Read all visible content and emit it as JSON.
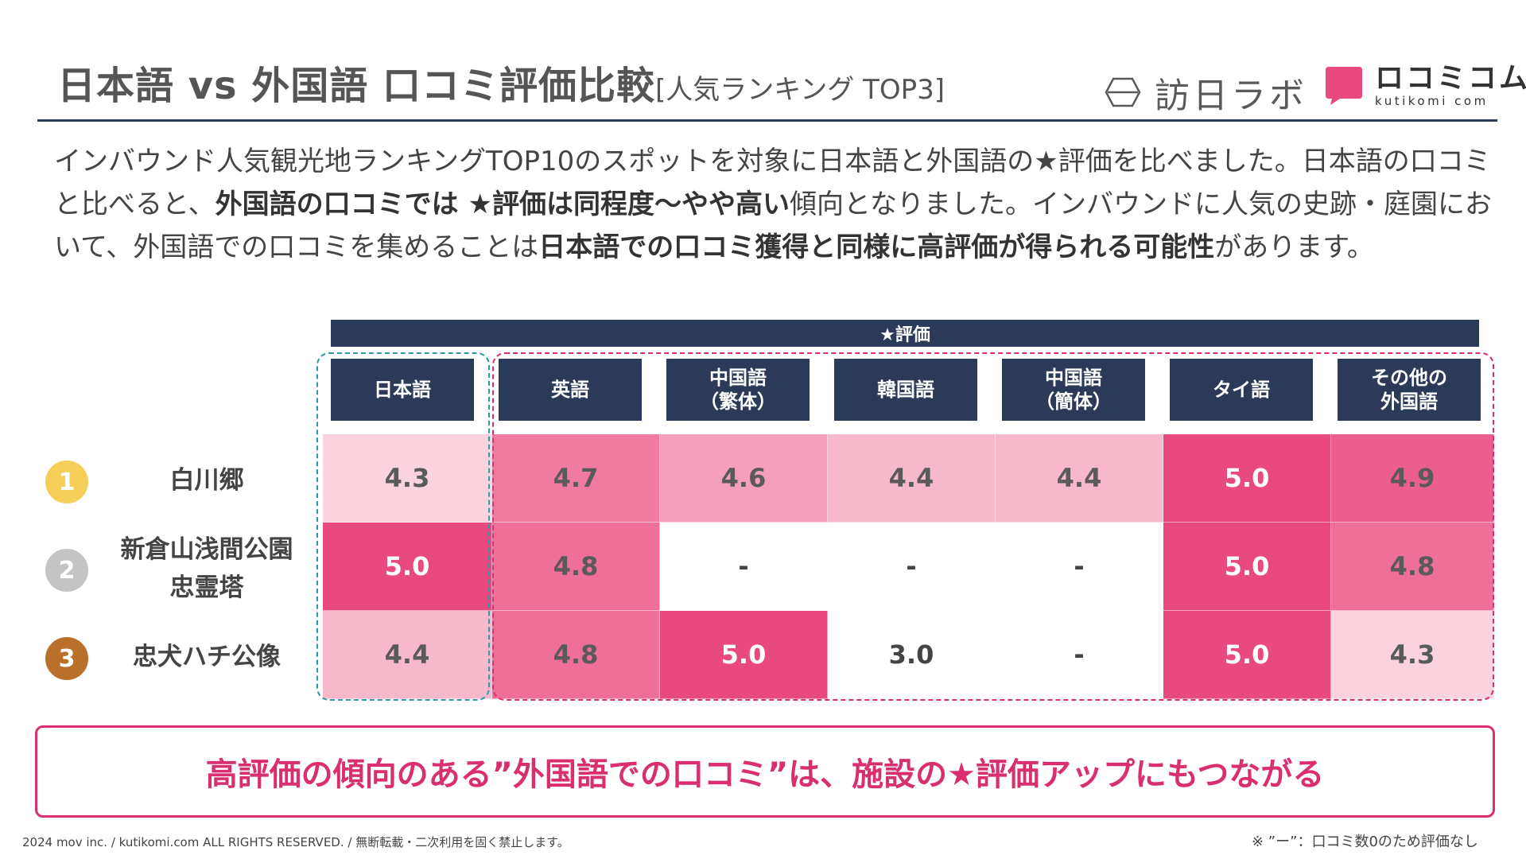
{
  "header": {
    "title": "日本語 vs 外国語 口コミ評価比較",
    "subtitle": "[人気ランキング TOP3]",
    "logo_houjin": "訪日ラボ",
    "logo_kutikomi": "ロコミコム",
    "logo_kutikomi_small": "kutikomi com"
  },
  "body": {
    "p1": "インバウンド人気観光地ランキングTOP10のスポットを対象に日本語と外国語の★評価を比べました。日本語の口コミと比べると、",
    "b1": "外国語の口コミでは ★評価は同程度〜やや高い",
    "p2": "傾向となりました。インバウンドに人気の史跡・庭園において、外国語での口コミを集めることは",
    "b2": "日本語での口コミ獲得と同様に高評価が得られる可能性",
    "p3": "があります。"
  },
  "table": {
    "group_header": "★評価",
    "columns": [
      "日本語",
      "英語",
      "中国語\n（繁体）",
      "韓国語",
      "中国語\n（簡体）",
      "タイ語",
      "その他の\n外国語"
    ],
    "rows": [
      {
        "rank": "1",
        "name": "白川郷",
        "values": [
          "4.3",
          "4.7",
          "4.6",
          "4.4",
          "4.4",
          "5.0",
          "4.9"
        ]
      },
      {
        "rank": "2",
        "name": "新倉山浅間公園\n忠霊塔",
        "values": [
          "5.0",
          "4.8",
          "-",
          "-",
          "-",
          "5.0",
          "4.8"
        ]
      },
      {
        "rank": "3",
        "name": "忠犬ハチ公像",
        "values": [
          "4.4",
          "4.8",
          "5.0",
          "3.0",
          "-",
          "5.0",
          "4.3"
        ]
      }
    ]
  },
  "callout": "高評価の傾向のある”外国語での口コミ”は、施設の★評価アップにもつながる",
  "footer": {
    "copyright": "2024 mov inc. / kutikomi.com ALL RIGHTS RESERVED. / 無断転載・二次利用を固く禁止します。",
    "note": "※ ”ー”：口コミ数0のため評価なし"
  },
  "colors": {
    "navy": "#2c3a5a",
    "pink_strong": "#e84a7f",
    "pink_mid": "#f07aa0",
    "pink_light": "#f7b8cc",
    "pink_pale": "#fbd3df",
    "gold": "#f6cf58",
    "silver": "#c4c4c4",
    "bronze": "#b8702a"
  }
}
